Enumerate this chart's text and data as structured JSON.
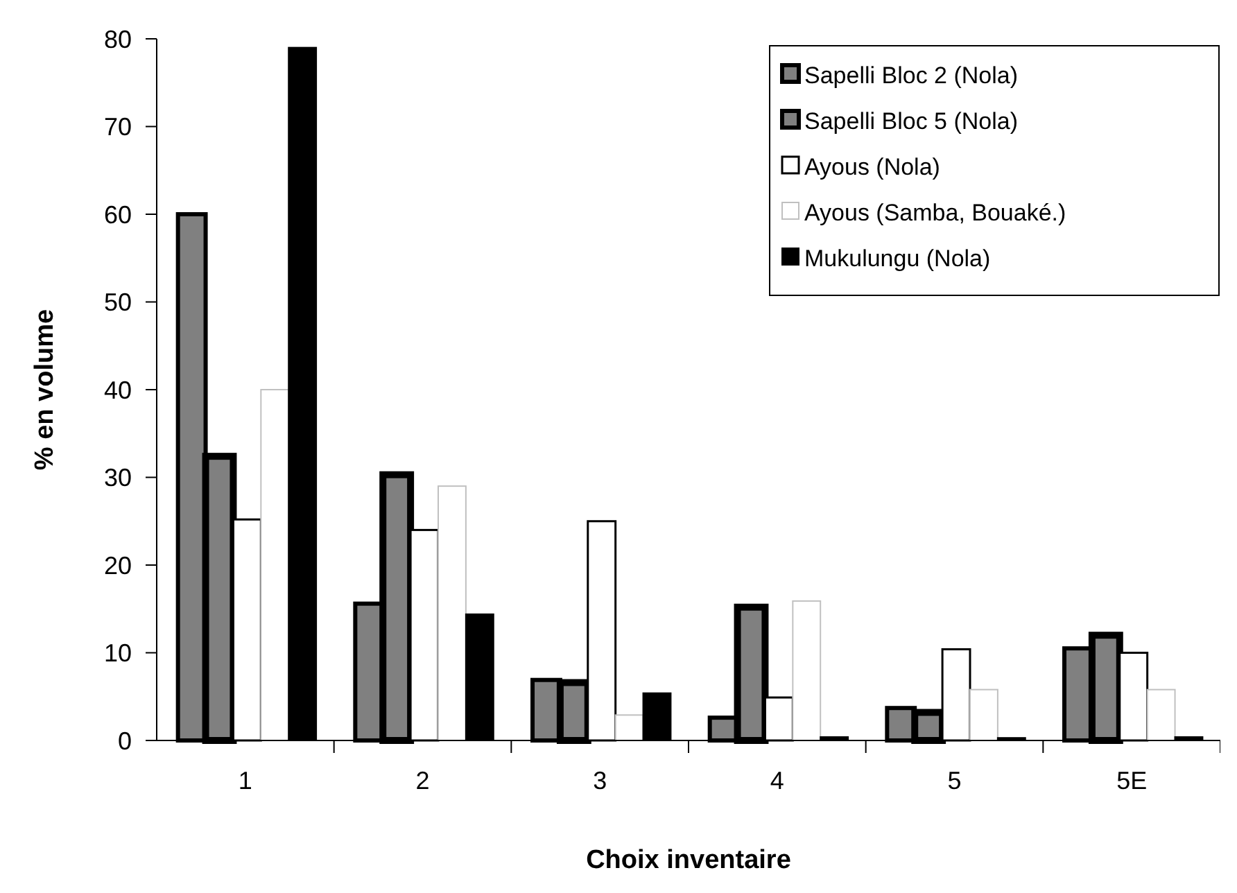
{
  "chart_data": {
    "type": "bar",
    "xlabel": "Choix inventaire",
    "ylabel": "% en volume",
    "categories": [
      "1",
      "2",
      "3",
      "4",
      "5",
      "5E"
    ],
    "series": [
      {
        "name": "Sapelli Bloc 2 (Nola)",
        "color": "#808080",
        "values": [
          60,
          15.6,
          6.9,
          2.6,
          3.7,
          10.5
        ]
      },
      {
        "name": "Sapelli Bloc 5 (Nola)",
        "color": "#808080",
        "values": [
          32.4,
          30.3,
          6.6,
          15.2,
          3.2,
          12
        ]
      },
      {
        "name": "Ayous (Nola)",
        "color": "#ffffff",
        "values": [
          25.2,
          24,
          25,
          4.9,
          10.4,
          10
        ]
      },
      {
        "name": "Ayous (Samba, Bouaké.)",
        "color": "#ffffff",
        "values": [
          40,
          29,
          2.9,
          15.9,
          5.8,
          5.8
        ]
      },
      {
        "name": "Mukulungu (Nola)",
        "color": "#000000",
        "values": [
          79,
          14.4,
          5.4,
          0.4,
          0.3,
          0.4
        ]
      }
    ],
    "ylim": [
      0,
      80
    ],
    "yticks": [
      0,
      10,
      20,
      30,
      40,
      50,
      60,
      70,
      80
    ],
    "grid": false,
    "legend": "top right"
  }
}
